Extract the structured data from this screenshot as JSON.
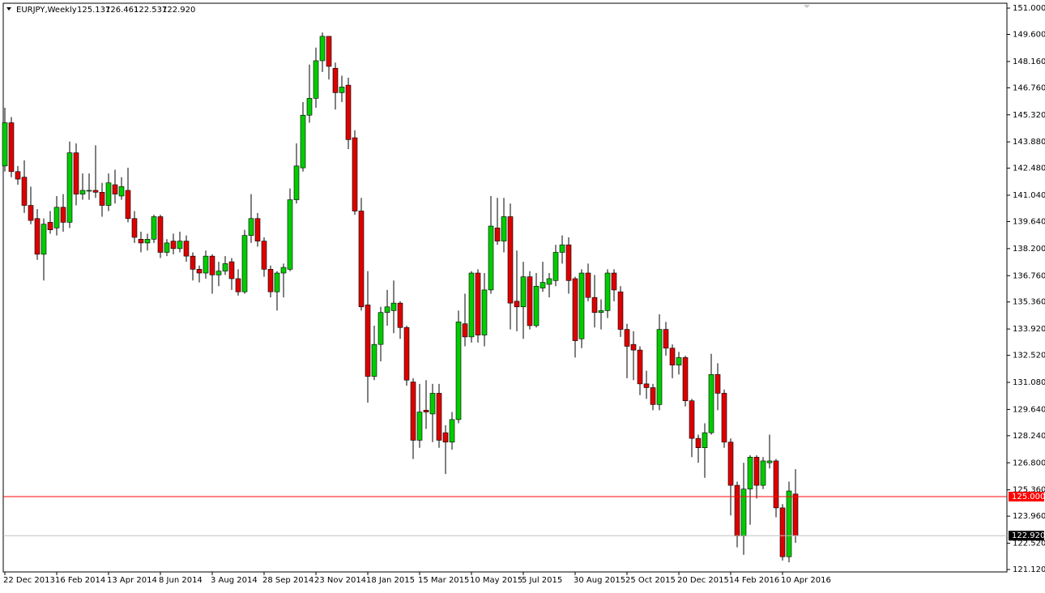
{
  "chart_data": {
    "type": "candlestick",
    "title": "EURJPY,Weekly",
    "header_values": [
      "125.137",
      "126.461",
      "122.537",
      "122.920"
    ],
    "categories": [
      "22 Dec 2013",
      null,
      null,
      null,
      null,
      null,
      null,
      null,
      "16 Feb 2014",
      null,
      null,
      null,
      null,
      null,
      null,
      null,
      "13 Apr 2014",
      null,
      null,
      null,
      null,
      null,
      null,
      null,
      "8 Jun 2014",
      null,
      null,
      null,
      null,
      null,
      null,
      null,
      "3 Aug 2014",
      null,
      null,
      null,
      null,
      null,
      null,
      null,
      "28 Sep 2014",
      null,
      null,
      null,
      null,
      null,
      null,
      null,
      "23 Nov 2014",
      null,
      null,
      null,
      null,
      null,
      null,
      null,
      "18 Jan 2015",
      null,
      null,
      null,
      null,
      null,
      null,
      null,
      "15 Mar 2015",
      null,
      null,
      null,
      null,
      null,
      null,
      null,
      "10 May 2015",
      null,
      null,
      null,
      null,
      null,
      null,
      null,
      "5 Jul 2015",
      null,
      null,
      null,
      null,
      null,
      null,
      null,
      "30 Aug 2015",
      null,
      null,
      null,
      null,
      null,
      null,
      null,
      "25 Oct 2015",
      null,
      null,
      null,
      null,
      null,
      null,
      null,
      "20 Dec 2015",
      null,
      null,
      null,
      null,
      null,
      null,
      null,
      "14 Feb 2016",
      null,
      null,
      null,
      null,
      null,
      null,
      null,
      "10 Apr 2016",
      null,
      null
    ],
    "open": [
      142.6,
      144.9,
      142.3,
      142.0,
      140.5,
      139.8,
      137.9,
      139.6,
      139.3,
      140.4,
      139.6,
      143.3,
      141.1,
      141.3,
      141.3,
      141.2,
      140.5,
      141.6,
      141.0,
      141.3,
      139.8,
      138.7,
      138.5,
      138.7,
      139.9,
      138.0,
      138.6,
      138.2,
      138.6,
      137.8,
      137.1,
      136.9,
      137.8,
      136.8,
      137.0,
      137.5,
      136.6,
      135.9,
      138.9,
      139.8,
      138.6,
      137.1,
      135.9,
      136.9,
      137.1,
      140.8,
      142.5,
      145.3,
      146.2,
      148.2,
      149.5,
      147.8,
      146.5,
      146.9,
      144.1,
      140.2,
      135.2,
      131.4,
      133.1,
      134.8,
      134.9,
      135.3,
      134.0,
      131.1,
      128.0,
      129.6,
      129.4,
      130.5,
      128.4,
      127.9,
      129.1,
      134.2,
      133.5,
      136.9,
      133.6,
      136.0,
      139.3,
      138.6,
      139.9,
      135.4,
      135.1,
      136.7,
      134.1,
      136.1,
      136.3,
      136.5,
      138.0,
      138.4,
      136.6,
      133.4,
      136.9,
      135.6,
      134.8,
      134.9,
      136.9,
      135.9,
      133.9,
      133.1,
      132.8,
      131.0,
      130.8,
      129.9,
      133.9,
      132.9,
      132.0,
      132.4,
      130.1,
      128.1,
      127.6,
      128.4,
      131.5,
      130.5,
      127.9,
      125.6,
      122.9,
      125.4,
      127.1,
      125.6,
      126.8,
      126.9,
      124.4,
      121.8,
      125.137
    ],
    "high": [
      145.7,
      145.2,
      142.6,
      142.9,
      141.5,
      140.3,
      139.8,
      140.2,
      141.0,
      141.1,
      143.9,
      143.8,
      142.2,
      142.2,
      143.7,
      141.7,
      142.2,
      142.4,
      142.0,
      142.5,
      140.2,
      139.1,
      139.0,
      140.0,
      140.0,
      138.7,
      139.0,
      139.1,
      138.9,
      138.0,
      137.3,
      138.1,
      137.9,
      137.5,
      137.8,
      137.7,
      137.1,
      139.2,
      141.1,
      140.1,
      138.8,
      137.3,
      137.0,
      137.4,
      141.4,
      143.8,
      146.0,
      148.0,
      148.9,
      149.7,
      149.5,
      148.1,
      147.4,
      147.3,
      144.5,
      140.9,
      137.0,
      134.1,
      135.1,
      136.0,
      136.5,
      135.4,
      134.1,
      131.3,
      131.0,
      131.2,
      131.0,
      131.0,
      128.8,
      129.5,
      134.9,
      135.8,
      137.0,
      137.1,
      136.9,
      141.0,
      140.9,
      140.9,
      140.6,
      138.1,
      137.5,
      137.0,
      136.9,
      137.5,
      136.9,
      138.4,
      138.9,
      138.8,
      136.7,
      137.1,
      137.4,
      136.8,
      135.5,
      137.1,
      137.1,
      136.2,
      134.2,
      133.8,
      133.0,
      131.7,
      131.0,
      134.7,
      134.3,
      133.1,
      132.7,
      132.5,
      130.2,
      128.3,
      128.9,
      132.6,
      132.1,
      130.7,
      128.1,
      125.8,
      126.8,
      127.2,
      127.2,
      127.1,
      128.3,
      127.0,
      124.6,
      125.8,
      126.461
    ],
    "low": [
      142.3,
      142.0,
      141.6,
      140.1,
      139.5,
      137.6,
      136.5,
      139.0,
      138.9,
      139.1,
      139.3,
      140.5,
      140.8,
      140.8,
      140.9,
      139.9,
      140.2,
      140.6,
      140.8,
      139.6,
      138.5,
      138.0,
      138.1,
      138.5,
      137.7,
      137.8,
      137.9,
      138.0,
      137.5,
      136.5,
      136.4,
      136.6,
      135.8,
      136.2,
      136.8,
      136.0,
      135.7,
      135.8,
      138.5,
      138.3,
      136.7,
      135.6,
      134.9,
      135.6,
      137.0,
      140.6,
      142.3,
      144.9,
      145.7,
      147.6,
      147.2,
      145.6,
      146.0,
      143.5,
      140.0,
      134.9,
      130.0,
      131.2,
      132.2,
      134.1,
      133.7,
      133.4,
      130.9,
      127.0,
      127.6,
      128.6,
      127.9,
      127.6,
      126.2,
      127.5,
      128.9,
      133.0,
      133.2,
      133.2,
      133.0,
      135.8,
      138.4,
      138.0,
      133.9,
      133.8,
      133.4,
      133.9,
      134.0,
      135.9,
      135.6,
      136.2,
      137.4,
      135.8,
      132.4,
      132.9,
      135.4,
      134.0,
      133.9,
      134.5,
      135.4,
      133.5,
      131.3,
      131.2,
      130.4,
      130.2,
      129.6,
      129.6,
      132.5,
      131.3,
      131.5,
      129.8,
      127.1,
      126.8,
      126.0,
      128.3,
      129.6,
      127.6,
      124.0,
      122.3,
      121.9,
      123.5,
      124.9,
      125.4,
      126.5,
      123.9,
      121.6,
      121.5,
      122.537
    ],
    "close": [
      144.9,
      142.3,
      141.9,
      140.5,
      139.7,
      137.9,
      139.5,
      139.2,
      140.4,
      139.6,
      143.3,
      141.1,
      141.3,
      141.3,
      141.2,
      140.5,
      141.7,
      141.1,
      141.5,
      139.8,
      138.8,
      138.5,
      138.7,
      139.9,
      138.0,
      138.5,
      138.2,
      138.6,
      137.8,
      137.1,
      136.9,
      137.8,
      136.8,
      137.0,
      137.4,
      136.6,
      135.9,
      138.9,
      139.8,
      138.6,
      137.1,
      135.9,
      136.9,
      137.2,
      140.8,
      142.6,
      145.3,
      146.2,
      148.2,
      149.5,
      147.9,
      146.5,
      146.8,
      144.0,
      140.2,
      135.1,
      131.4,
      133.1,
      134.8,
      135.1,
      135.3,
      134.0,
      131.2,
      128.0,
      129.5,
      129.5,
      130.5,
      128.0,
      127.9,
      129.1,
      134.3,
      133.5,
      136.9,
      133.6,
      136.0,
      139.4,
      138.6,
      139.9,
      135.3,
      135.1,
      136.7,
      134.1,
      136.2,
      136.4,
      136.6,
      138.0,
      138.4,
      136.5,
      133.3,
      136.9,
      135.6,
      134.8,
      134.9,
      136.9,
      136.0,
      133.9,
      133.0,
      132.8,
      131.0,
      130.8,
      129.9,
      133.9,
      132.9,
      132.0,
      132.4,
      130.1,
      128.1,
      127.6,
      128.4,
      131.5,
      130.5,
      127.9,
      125.6,
      122.9,
      125.4,
      127.1,
      125.6,
      126.9,
      126.9,
      124.4,
      121.8,
      125.3,
      122.92
    ],
    "up_color": "#00cc00",
    "down_color": "#dd0000",
    "wick_color": "#000000",
    "ylim": [
      120.99,
      151.26
    ],
    "yticks": [
      {
        "value": 151,
        "label": "151.000"
      },
      {
        "value": 149.6,
        "label": "149.600"
      },
      {
        "value": 148.16,
        "label": "148.160"
      },
      {
        "value": 146.76,
        "label": "146.760"
      },
      {
        "value": 145.32,
        "label": "145.320"
      },
      {
        "value": 143.88,
        "label": "143.880"
      },
      {
        "value": 142.48,
        "label": "142.480"
      },
      {
        "value": 141.04,
        "label": "141.040"
      },
      {
        "value": 139.64,
        "label": "139.640"
      },
      {
        "value": 138.2,
        "label": "138.200"
      },
      {
        "value": 136.76,
        "label": "136.760"
      },
      {
        "value": 135.36,
        "label": "135.360"
      },
      {
        "value": 133.92,
        "label": "133.920"
      },
      {
        "value": 132.52,
        "label": "132.520"
      },
      {
        "value": 131.08,
        "label": "131.080"
      },
      {
        "value": 129.64,
        "label": "129.640"
      },
      {
        "value": 128.24,
        "label": "128.240"
      },
      {
        "value": 126.8,
        "label": "126.800"
      },
      {
        "value": 125.36,
        "label": "125.360"
      },
      {
        "value": 123.96,
        "label": "123.960"
      },
      {
        "value": 122.52,
        "label": "122.520"
      },
      {
        "value": 121.12,
        "label": "121.120"
      }
    ],
    "lines": [
      {
        "value": 125,
        "label": "125.000",
        "color": "#ff0000",
        "tag": "#ff0000"
      },
      {
        "value": 122.92,
        "label": "122.920",
        "color": "#c0c0c0",
        "tag": "#000000"
      }
    ]
  }
}
